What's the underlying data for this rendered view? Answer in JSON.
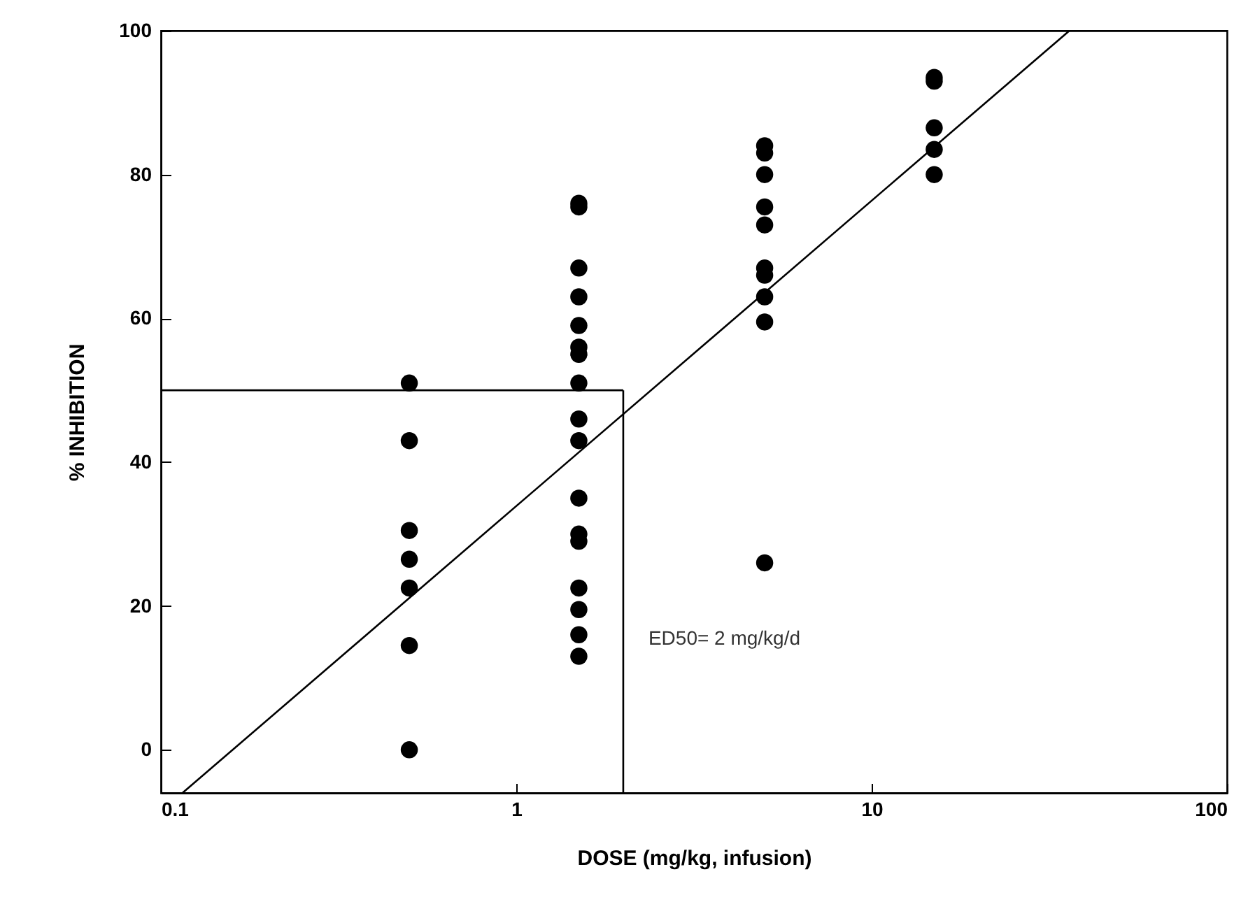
{
  "chart_data": {
    "type": "scatter",
    "xlabel": "DOSE (mg/kg, infusion)",
    "ylabel": "% INHIBITION",
    "log": "x",
    "xlim": [
      0.1,
      100
    ],
    "xticks": [
      0.1,
      1,
      10,
      100
    ],
    "ylim": [
      -6,
      100
    ],
    "yticks": [
      0,
      20,
      40,
      60,
      80,
      100
    ],
    "grid": false,
    "marker": "circle",
    "series": [
      {
        "color": "#000000",
        "x": [
          0.5,
          0.5,
          0.5,
          0.5,
          0.5,
          0.5,
          0.5,
          1.5,
          1.5,
          1.5,
          1.5,
          1.5,
          1.5,
          1.5,
          1.5,
          1.5,
          1.5,
          1.5,
          1.5,
          1.5,
          1.5,
          1.5,
          1.5,
          1.5,
          5,
          5,
          5,
          5,
          5,
          5,
          5,
          5,
          5,
          5,
          15,
          15,
          15,
          15,
          15
        ],
        "values": [
          51,
          43,
          30.5,
          26.5,
          22.5,
          14.5,
          0,
          76,
          75.5,
          67,
          63,
          59,
          56,
          55,
          51,
          46,
          43,
          35,
          30,
          29,
          22.5,
          19.5,
          16,
          13,
          84,
          83,
          80,
          75.5,
          73,
          67,
          66,
          63,
          59.5,
          26,
          93.5,
          93,
          86.5,
          83.5,
          80
        ]
      },
      {
        "type": "line",
        "color": "#000000",
        "marker": "none",
        "line_style": "solid",
        "x": [
          0.115,
          36
        ],
        "values": [
          -6,
          100
        ]
      }
    ],
    "ref_lines": [
      {
        "axis": "x",
        "value": 2,
        "label": "ED50= 2 mg/kg/d",
        "color": "#000000"
      },
      {
        "axis": "y",
        "value": 50,
        "color": "#000000"
      }
    ]
  }
}
